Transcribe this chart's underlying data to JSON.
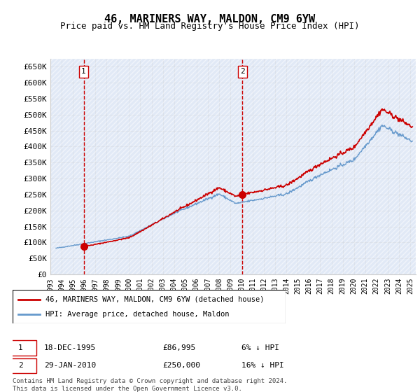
{
  "title": "46, MARINERS WAY, MALDON, CM9 6YW",
  "subtitle": "Price paid vs. HM Land Registry's House Price Index (HPI)",
  "ylim": [
    0,
    675000
  ],
  "yticks": [
    0,
    50000,
    100000,
    150000,
    200000,
    250000,
    300000,
    350000,
    400000,
    450000,
    500000,
    550000,
    600000,
    650000
  ],
  "ytick_labels": [
    "£0",
    "£50K",
    "£100K",
    "£150K",
    "£200K",
    "£250K",
    "£300K",
    "£350K",
    "£400K",
    "£450K",
    "£500K",
    "£550K",
    "£600K",
    "£650K"
  ],
  "sale1_date_num": 1995.96,
  "sale1_price": 86995,
  "sale2_date_num": 2010.08,
  "sale2_price": 250000,
  "sale1_label": "1",
  "sale2_label": "2",
  "line_color_hpi": "#6699cc",
  "line_color_price": "#cc0000",
  "point_color": "#cc0000",
  "bg_hatch_color": "#e8eef8",
  "grid_color": "#cccccc",
  "dashed_vline_color": "#cc0000",
  "legend_line1": "46, MARINERS WAY, MALDON, CM9 6YW (detached house)",
  "legend_line2": "HPI: Average price, detached house, Maldon",
  "table_row1": [
    "1",
    "18-DEC-1995",
    "£86,995",
    "6% ↓ HPI"
  ],
  "table_row2": [
    "2",
    "29-JAN-2010",
    "£250,000",
    "16% ↓ HPI"
  ],
  "footer": "Contains HM Land Registry data © Crown copyright and database right 2024.\nThis data is licensed under the Open Government Licence v3.0.",
  "xlim_start": 1993.0,
  "xlim_end": 2025.5
}
